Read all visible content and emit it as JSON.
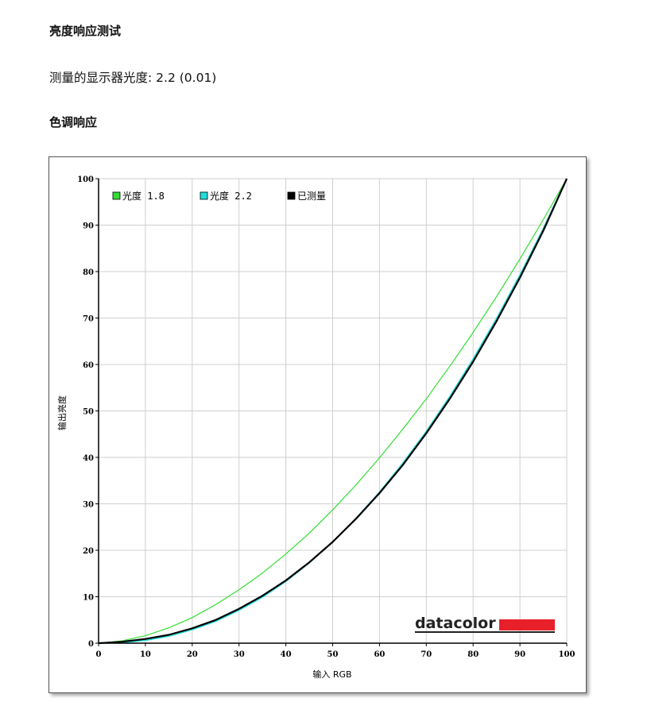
{
  "page": {
    "title": "亮度响应测试",
    "measured_label": "测量的显示器光度:",
    "measured_value": "2.2 (0.01)",
    "section_title": "色调响应"
  },
  "chart_data": {
    "type": "line",
    "xlabel": "输入 RGB",
    "ylabel": "输出亮度",
    "xlim": [
      0,
      100
    ],
    "ylim": [
      0,
      100
    ],
    "xticks": [
      0,
      10,
      20,
      30,
      40,
      50,
      60,
      70,
      80,
      90,
      100
    ],
    "yticks": [
      0,
      10,
      20,
      30,
      40,
      50,
      60,
      70,
      80,
      90,
      100
    ],
    "grid": true,
    "legend_position": "top-left",
    "series": [
      {
        "name": "光度 1.8",
        "color": "#33dd33",
        "x": [
          0,
          5,
          10,
          15,
          20,
          25,
          30,
          35,
          40,
          45,
          50,
          55,
          60,
          65,
          70,
          75,
          80,
          85,
          90,
          95,
          100
        ],
        "y": [
          0,
          0.5,
          1.6,
          3.3,
          5.5,
          8.3,
          11.5,
          15.1,
          19.2,
          23.7,
          28.7,
          34.1,
          39.9,
          46.1,
          52.6,
          59.6,
          66.9,
          74.6,
          82.7,
          91.2,
          100
        ]
      },
      {
        "name": "光度 2.2",
        "color": "#22dddd",
        "x": [
          0,
          5,
          10,
          15,
          20,
          25,
          30,
          35,
          40,
          45,
          50,
          55,
          60,
          65,
          70,
          75,
          80,
          85,
          90,
          95,
          100
        ],
        "y": [
          0,
          0.1,
          0.6,
          1.5,
          2.9,
          4.7,
          7.1,
          9.9,
          13.3,
          17.3,
          21.8,
          26.9,
          32.5,
          38.8,
          45.6,
          53.1,
          61.2,
          69.9,
          79.3,
          89.3,
          100
        ]
      },
      {
        "name": "已测量",
        "color": "#000000",
        "x": [
          0,
          5,
          10,
          15,
          20,
          25,
          30,
          35,
          40,
          45,
          50,
          55,
          60,
          65,
          70,
          75,
          80,
          85,
          90,
          95,
          100
        ],
        "y": [
          0,
          0.3,
          0.9,
          1.8,
          3.2,
          5.0,
          7.4,
          10.2,
          13.5,
          17.4,
          21.8,
          26.8,
          32.3,
          38.4,
          45.2,
          52.6,
          60.6,
          69.3,
          78.7,
          88.8,
          100
        ]
      }
    ]
  },
  "branding": {
    "logo_text": "datacolor",
    "logo_color": "#e8202a"
  }
}
